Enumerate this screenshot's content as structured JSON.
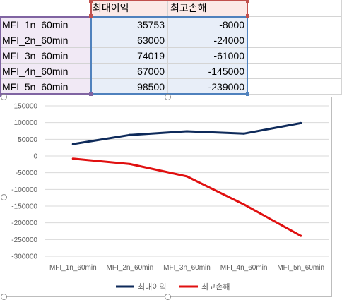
{
  "sheet": {
    "header": {
      "a": "",
      "b": "최대이익",
      "c": "최고손해",
      "d": ""
    },
    "rows": [
      {
        "label": "MFI_1n_60min",
        "b": "35753",
        "c": "-8000"
      },
      {
        "label": "MFI_2n_60min",
        "b": "63000",
        "c": "-24000"
      },
      {
        "label": "MFI_3n_60min",
        "b": "74019",
        "c": "-61000"
      },
      {
        "label": "MFI_4n_60min",
        "b": "67000",
        "c": "-145000"
      },
      {
        "label": "MFI_5n_60min",
        "b": "98500",
        "c": "-239000"
      }
    ]
  },
  "chart_data": {
    "type": "line",
    "categories": [
      "MFI_1n_60min",
      "MFI_2n_60min",
      "MFI_3n_60min",
      "MFI_4n_60min",
      "MFI_5n_60min"
    ],
    "series": [
      {
        "name": "최대이익",
        "values": [
          35753,
          63000,
          74019,
          67000,
          98500
        ],
        "color": "#0e2a5a"
      },
      {
        "name": "최고손해",
        "values": [
          -8000,
          -24000,
          -61000,
          -145000,
          -239000
        ],
        "color": "#e01010"
      }
    ],
    "ylim": [
      -300000,
      150000
    ],
    "yticks": [
      "150000",
      "100000",
      "50000",
      "0",
      "-50000",
      "-100000",
      "-150000",
      "-200000",
      "-250000",
      "-300000"
    ],
    "ytick_values": [
      150000,
      100000,
      50000,
      0,
      -50000,
      -100000,
      -150000,
      -200000,
      -250000,
      -300000
    ],
    "grid": true,
    "legend_position": "bottom"
  },
  "colors": {
    "gridline": "#d9d9d9",
    "series_range_border": "#c0504d",
    "category_range_border": "#8064a2",
    "value_range_border": "#4f81bd"
  }
}
